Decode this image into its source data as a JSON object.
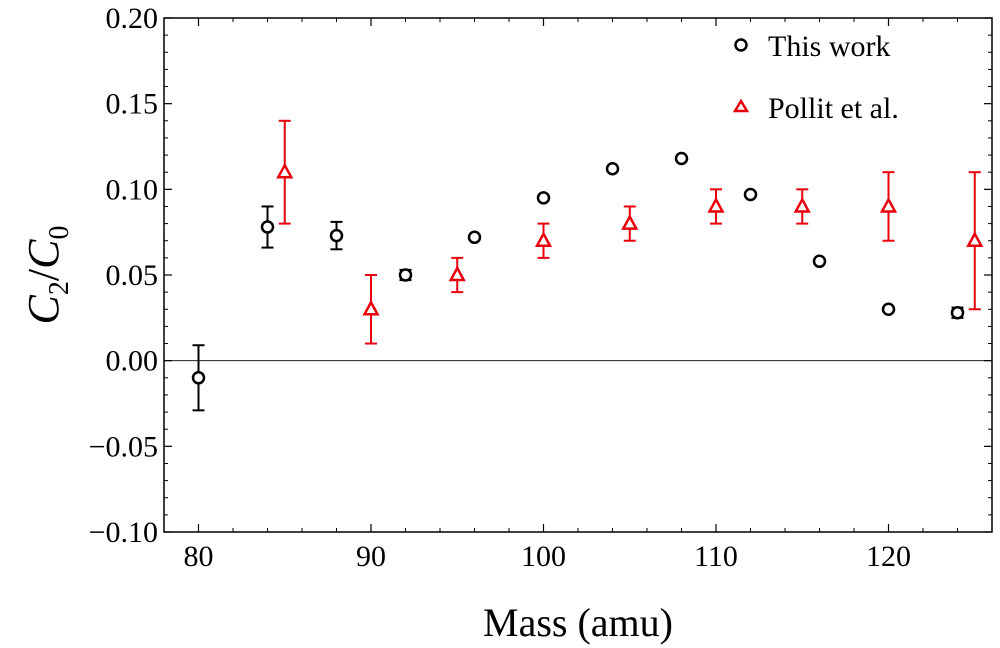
{
  "chart_data": {
    "type": "scatter",
    "title": "",
    "xlabel": "Mass (amu)",
    "ylabel_main": "C",
    "ylabel_sub_num": "2",
    "ylabel_sep": "/",
    "ylabel_sub_den": "0",
    "xlim": [
      78,
      126
    ],
    "ylim": [
      -0.1,
      0.2
    ],
    "xticks": [
      80,
      90,
      100,
      110,
      120
    ],
    "yticks": [
      -0.1,
      -0.05,
      0.0,
      0.05,
      0.1,
      0.15,
      0.2
    ],
    "xtick_labels": [
      "80",
      "90",
      "100",
      "110",
      "120"
    ],
    "ytick_labels": [
      "−0.10",
      "−0.05",
      "0.00",
      "0.05",
      "0.10",
      "0.15",
      "0.20"
    ],
    "zero_line": 0.0,
    "legend_position": "top-right",
    "series": [
      {
        "name": "This work",
        "marker": "circle",
        "color": "#000000",
        "points": [
          {
            "x": 80,
            "y": -0.01,
            "err": 0.019
          },
          {
            "x": 84,
            "y": 0.078,
            "err": 0.012
          },
          {
            "x": 88,
            "y": 0.073,
            "err": 0.008
          },
          {
            "x": 92,
            "y": 0.05,
            "err": 0.003
          },
          {
            "x": 96,
            "y": 0.072,
            "err": 0.0
          },
          {
            "x": 100,
            "y": 0.095,
            "err": 0.0
          },
          {
            "x": 104,
            "y": 0.112,
            "err": 0.0
          },
          {
            "x": 108,
            "y": 0.118,
            "err": 0.0
          },
          {
            "x": 112,
            "y": 0.097,
            "err": 0.0
          },
          {
            "x": 116,
            "y": 0.058,
            "err": 0.0
          },
          {
            "x": 120,
            "y": 0.03,
            "err": 0.0
          },
          {
            "x": 124,
            "y": 0.028,
            "err": 0.003
          }
        ]
      },
      {
        "name": "Pollit et al.",
        "marker": "triangle",
        "color": "#e8000b",
        "points": [
          {
            "x": 85,
            "y": 0.11,
            "err": 0.03
          },
          {
            "x": 90,
            "y": 0.03,
            "err": 0.02
          },
          {
            "x": 95,
            "y": 0.05,
            "err": 0.01
          },
          {
            "x": 100,
            "y": 0.07,
            "err": 0.01
          },
          {
            "x": 105,
            "y": 0.08,
            "err": 0.01
          },
          {
            "x": 110,
            "y": 0.09,
            "err": 0.01
          },
          {
            "x": 115,
            "y": 0.09,
            "err": 0.01
          },
          {
            "x": 120,
            "y": 0.09,
            "err": 0.02
          },
          {
            "x": 125,
            "y": 0.07,
            "err": 0.04
          }
        ]
      }
    ]
  }
}
